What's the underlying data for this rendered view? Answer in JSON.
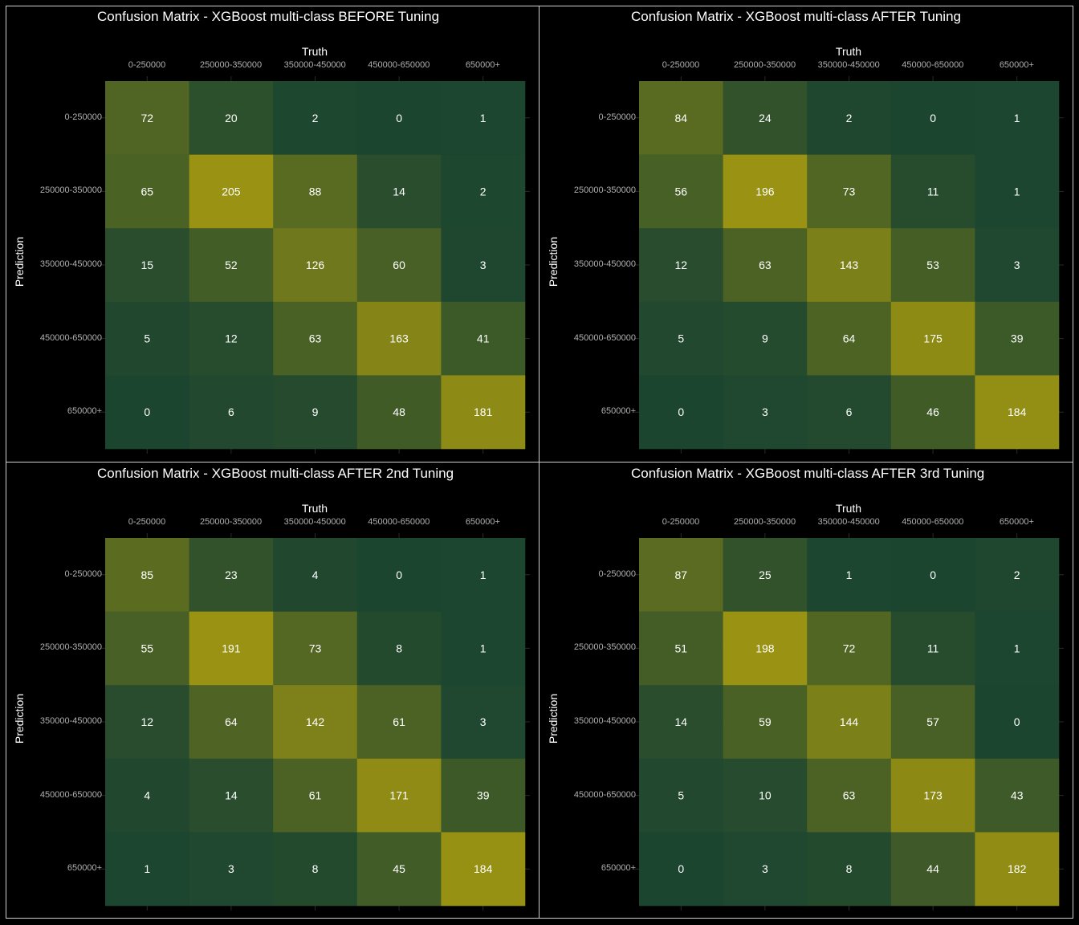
{
  "chart_data": [
    {
      "type": "heatmap",
      "title": "Confusion Matrix - XGBoost multi-class BEFORE Tuning",
      "xlabel": "Truth",
      "ylabel": "Prediction",
      "categories": [
        "0-250000",
        "250000-350000",
        "350000-450000",
        "450000-650000",
        "650000+"
      ],
      "values": [
        [
          72,
          20,
          2,
          0,
          1
        ],
        [
          65,
          205,
          88,
          14,
          2
        ],
        [
          15,
          52,
          126,
          60,
          3
        ],
        [
          5,
          12,
          63,
          163,
          41
        ],
        [
          0,
          6,
          9,
          48,
          181
        ]
      ]
    },
    {
      "type": "heatmap",
      "title": "Confusion Matrix - XGBoost multi-class AFTER Tuning",
      "xlabel": "Truth",
      "ylabel": "Prediction",
      "categories": [
        "0-250000",
        "250000-350000",
        "350000-450000",
        "450000-650000",
        "650000+"
      ],
      "values": [
        [
          84,
          24,
          2,
          0,
          1
        ],
        [
          56,
          196,
          73,
          11,
          1
        ],
        [
          12,
          63,
          143,
          53,
          3
        ],
        [
          5,
          9,
          64,
          175,
          39
        ],
        [
          0,
          3,
          6,
          46,
          184
        ]
      ]
    },
    {
      "type": "heatmap",
      "title": "Confusion Matrix - XGBoost multi-class AFTER 2nd Tuning",
      "xlabel": "Truth",
      "ylabel": "Prediction",
      "categories": [
        "0-250000",
        "250000-350000",
        "350000-450000",
        "450000-650000",
        "650000+"
      ],
      "values": [
        [
          85,
          23,
          4,
          0,
          1
        ],
        [
          55,
          191,
          73,
          8,
          1
        ],
        [
          12,
          64,
          142,
          61,
          3
        ],
        [
          4,
          14,
          61,
          171,
          39
        ],
        [
          1,
          3,
          8,
          45,
          184
        ]
      ]
    },
    {
      "type": "heatmap",
      "title": "Confusion Matrix - XGBoost multi-class AFTER 3rd Tuning",
      "xlabel": "Truth",
      "ylabel": "Prediction",
      "categories": [
        "0-250000",
        "250000-350000",
        "350000-450000",
        "450000-650000",
        "650000+"
      ],
      "values": [
        [
          87,
          25,
          1,
          0,
          2
        ],
        [
          51,
          198,
          72,
          11,
          1
        ],
        [
          14,
          59,
          144,
          57,
          0
        ],
        [
          5,
          10,
          63,
          173,
          43
        ],
        [
          0,
          3,
          8,
          44,
          182
        ]
      ]
    }
  ],
  "colors": {
    "low": "#1c4530",
    "high": "#9a9212",
    "background": "#000000",
    "grid": "#2a2a2a"
  }
}
